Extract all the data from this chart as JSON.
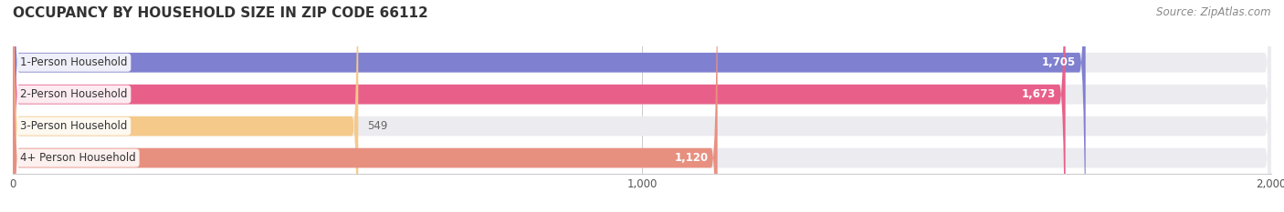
{
  "title": "OCCUPANCY BY HOUSEHOLD SIZE IN ZIP CODE 66112",
  "source": "Source: ZipAtlas.com",
  "categories": [
    "1-Person Household",
    "2-Person Household",
    "3-Person Household",
    "4+ Person Household"
  ],
  "values": [
    1705,
    1673,
    549,
    1120
  ],
  "bar_colors": [
    "#8080d0",
    "#e8608a",
    "#f5c98a",
    "#e89080"
  ],
  "bar_bg_color": "#ebebf0",
  "value_labels": [
    "1,705",
    "1,673",
    "549",
    "1,120"
  ],
  "xlim": [
    0,
    2000
  ],
  "xticks": [
    0,
    1000,
    2000
  ],
  "xtick_labels": [
    "0",
    "1,000",
    "2,000"
  ],
  "figsize": [
    14.06,
    2.33
  ],
  "dpi": 100,
  "title_fontsize": 11,
  "label_fontsize": 8.5,
  "value_fontsize": 8.5,
  "source_fontsize": 8.5,
  "bar_height": 0.62,
  "bg_color": "#ffffff"
}
